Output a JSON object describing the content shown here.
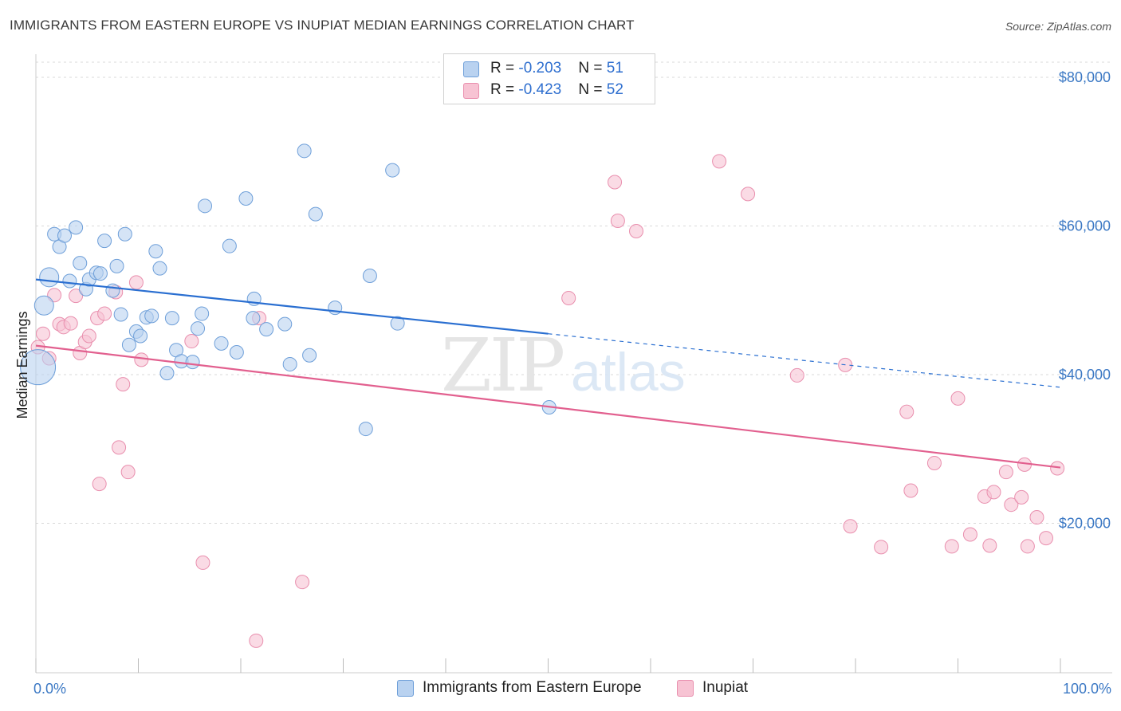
{
  "header": {
    "title": "IMMIGRANTS FROM EASTERN EUROPE VS INUPIAT MEDIAN EARNINGS CORRELATION CHART",
    "source": "Source: ZipAtlas.com"
  },
  "watermark": {
    "zip": "ZIP",
    "atlas": "atlas"
  },
  "legend": {
    "rows": [
      {
        "r_label": "R = ",
        "r_value": "-0.203",
        "n_label": "N = ",
        "n_value": "51"
      },
      {
        "r_label": "R = ",
        "r_value": "-0.423",
        "n_label": "N = ",
        "n_value": "52"
      }
    ]
  },
  "colors": {
    "blue_fill": "#b9d2f0",
    "blue_stroke": "#6e9fd9",
    "blue_line": "#2a6fd1",
    "pink_fill": "#f7c3d3",
    "pink_stroke": "#e98fae",
    "pink_line": "#e2608f",
    "grid": "#d9d9d9",
    "tick_text": "#3b78c4"
  },
  "chart_data": {
    "type": "scatter",
    "ylabel": "Median Earnings",
    "xlim": [
      0,
      100
    ],
    "ylim": [
      0,
      80000
    ],
    "x_tick_labels": [
      "0.0%",
      "100.0%"
    ],
    "y_ticks": [
      {
        "value": 20000,
        "label": "$20,000"
      },
      {
        "value": 40000,
        "label": "$40,000"
      },
      {
        "value": 60000,
        "label": "$60,000"
      },
      {
        "value": 80000,
        "label": "$80,000"
      }
    ],
    "grid": true,
    "legend_position": "top-center",
    "series": [
      {
        "name": "Immigrants from Eastern Europe",
        "color": "blue",
        "trend": {
          "x0": 0,
          "y0": 52800,
          "x1": 50,
          "y1": 45500,
          "dashed_to_x": 100,
          "dashed_to_y": 38300
        },
        "points": [
          [
            0.2,
            41000,
            "large"
          ],
          [
            0.8,
            49300,
            "medium"
          ],
          [
            1.3,
            53100,
            "medium"
          ],
          [
            1.8,
            58900
          ],
          [
            2.3,
            57200
          ],
          [
            2.8,
            58700
          ],
          [
            3.3,
            52600
          ],
          [
            3.9,
            59800
          ],
          [
            4.3,
            55000
          ],
          [
            4.9,
            51500
          ],
          [
            5.2,
            52800
          ],
          [
            5.9,
            53700
          ],
          [
            6.3,
            53600
          ],
          [
            6.7,
            58000
          ],
          [
            7.5,
            51300
          ],
          [
            7.9,
            54600
          ],
          [
            8.3,
            48100
          ],
          [
            8.7,
            58900
          ],
          [
            9.1,
            44000
          ],
          [
            9.8,
            45800
          ],
          [
            10.2,
            45200
          ],
          [
            10.8,
            47700
          ],
          [
            11.3,
            47900
          ],
          [
            11.7,
            56600
          ],
          [
            12.1,
            54300
          ],
          [
            12.8,
            40200
          ],
          [
            13.3,
            47600
          ],
          [
            13.7,
            43300
          ],
          [
            14.2,
            41800
          ],
          [
            15.3,
            41700
          ],
          [
            15.8,
            46200
          ],
          [
            16.2,
            48200
          ],
          [
            16.5,
            62700
          ],
          [
            18.1,
            44200
          ],
          [
            18.9,
            57300
          ],
          [
            19.6,
            43000
          ],
          [
            20.5,
            63700
          ],
          [
            21.2,
            47600
          ],
          [
            21.3,
            50200
          ],
          [
            22.5,
            46100
          ],
          [
            24.3,
            46800
          ],
          [
            24.8,
            41400
          ],
          [
            26.2,
            70100
          ],
          [
            26.7,
            42600
          ],
          [
            27.3,
            61600
          ],
          [
            29.2,
            49000
          ],
          [
            32.2,
            32700
          ],
          [
            32.6,
            53300
          ],
          [
            34.8,
            67500
          ],
          [
            35.3,
            46900
          ],
          [
            50.1,
            35600
          ]
        ]
      },
      {
        "name": "Inupiat",
        "color": "pink",
        "trend": {
          "x0": 0,
          "y0": 43900,
          "x1": 100,
          "y1": 27500
        },
        "points": [
          [
            0.2,
            43700
          ],
          [
            0.7,
            45500
          ],
          [
            1.3,
            42200
          ],
          [
            1.8,
            50700
          ],
          [
            2.3,
            46800
          ],
          [
            2.7,
            46400
          ],
          [
            3.4,
            46900
          ],
          [
            3.9,
            50600
          ],
          [
            4.3,
            42900
          ],
          [
            4.8,
            44400
          ],
          [
            5.2,
            45200
          ],
          [
            6.0,
            47600
          ],
          [
            6.2,
            25300
          ],
          [
            6.7,
            48200
          ],
          [
            7.8,
            51100
          ],
          [
            8.1,
            30200
          ],
          [
            8.5,
            38700
          ],
          [
            9.0,
            26900
          ],
          [
            9.8,
            52400
          ],
          [
            10.3,
            42000
          ],
          [
            15.2,
            44500
          ],
          [
            16.3,
            14700
          ],
          [
            21.5,
            4200
          ],
          [
            21.8,
            47600
          ],
          [
            26.0,
            12100
          ],
          [
            52.0,
            50300
          ],
          [
            56.5,
            65900
          ],
          [
            56.8,
            60700
          ],
          [
            58.6,
            59300
          ],
          [
            66.7,
            68700
          ],
          [
            69.5,
            64300
          ],
          [
            74.3,
            39900
          ],
          [
            79.0,
            41300
          ],
          [
            79.5,
            19600
          ],
          [
            82.5,
            16800
          ],
          [
            85.0,
            35000
          ],
          [
            85.4,
            24400
          ],
          [
            87.7,
            28100
          ],
          [
            89.4,
            16900
          ],
          [
            90.0,
            36800
          ],
          [
            91.2,
            18500
          ],
          [
            92.6,
            23600
          ],
          [
            93.1,
            17000
          ],
          [
            93.5,
            24200
          ],
          [
            94.7,
            26900
          ],
          [
            95.2,
            22500
          ],
          [
            96.2,
            23500
          ],
          [
            96.5,
            27900
          ],
          [
            96.8,
            16900
          ],
          [
            97.7,
            20800
          ],
          [
            98.6,
            18000
          ],
          [
            99.7,
            27400
          ]
        ]
      }
    ]
  },
  "bottom_legend": {
    "items": [
      {
        "label": "Immigrants from Eastern Europe"
      },
      {
        "label": "Inupiat"
      }
    ]
  }
}
